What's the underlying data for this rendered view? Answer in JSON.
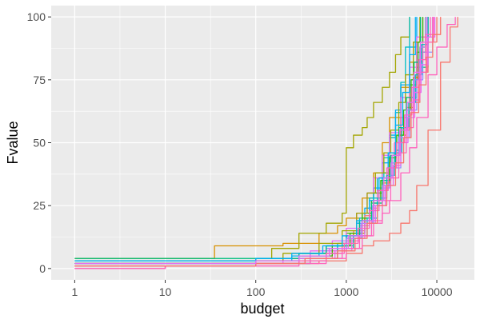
{
  "chart_data": {
    "type": "line",
    "title": "",
    "xlabel": "budget",
    "ylabel": "Fvalue",
    "x_scale": "log10",
    "xlim": [
      0.55,
      26000
    ],
    "ylim": [
      -4.5,
      104.5
    ],
    "x_ticks": [
      1,
      10,
      100,
      1000,
      10000
    ],
    "x_tick_labels": [
      "1",
      "10",
      "100",
      "1000",
      "10000"
    ],
    "y_ticks": [
      0,
      25,
      50,
      75,
      100
    ],
    "y_tick_labels": [
      "0",
      "25",
      "50",
      "75",
      "100"
    ],
    "grid": true,
    "legend": "none",
    "colors": {
      "panel": "#ebebeb",
      "grid_major": "#ffffff",
      "series_palette": [
        "#F8766D",
        "#D89000",
        "#A3A500",
        "#39B600",
        "#00BF7D",
        "#00BFC4",
        "#00B0F6",
        "#9590FF",
        "#E76BF3",
        "#FF62BC"
      ]
    },
    "series": [
      {
        "color": "#F8766D",
        "x": [
          1,
          10,
          100,
          250,
          500,
          1000,
          1500,
          2000,
          3000,
          4000,
          5000,
          6000,
          8000,
          11000,
          14000,
          17000
        ],
        "y": [
          1,
          1,
          2,
          2,
          3,
          6,
          9,
          11,
          14,
          18,
          23,
          33,
          55,
          82,
          96,
          100
        ]
      },
      {
        "color": "#FF62BC",
        "x": [
          1,
          10,
          100,
          300,
          600,
          1000,
          1500,
          2000,
          2500,
          3000,
          4000,
          5000,
          6000,
          8000,
          10000,
          13000,
          16000
        ],
        "y": [
          0,
          1,
          1,
          2,
          4,
          8,
          13,
          18,
          22,
          27,
          38,
          48,
          60,
          77,
          88,
          97,
          100
        ]
      },
      {
        "color": "#D89000",
        "x": [
          1,
          3,
          35,
          100,
          200,
          500,
          800,
          1000,
          1500,
          2000,
          2500,
          3000,
          4000,
          5000,
          6000,
          8000
        ],
        "y": [
          4,
          4,
          9,
          9,
          10,
          14,
          17,
          20,
          28,
          38,
          50,
          60,
          72,
          82,
          90,
          100
        ]
      },
      {
        "color": "#A3A500",
        "x": [
          1,
          10,
          100,
          150,
          300,
          600,
          900,
          1000,
          1200,
          1500,
          1700,
          2000,
          2500,
          3000,
          3500,
          4000,
          5000
        ],
        "y": [
          2,
          2,
          4,
          8,
          14,
          18,
          22,
          48,
          53,
          56,
          60,
          66,
          72,
          78,
          85,
          92,
          100
        ]
      },
      {
        "color": "#39B600",
        "x": [
          1,
          10,
          100,
          300,
          600,
          1000,
          1500,
          2000,
          2500,
          3000,
          4000,
          5000,
          6000,
          7500
        ],
        "y": [
          2,
          2,
          3,
          5,
          9,
          14,
          22,
          30,
          38,
          46,
          60,
          73,
          86,
          100
        ]
      },
      {
        "color": "#00BF7D",
        "x": [
          1,
          10,
          100,
          400,
          800,
          1200,
          1600,
          2000,
          2500,
          3000,
          3500,
          4000,
          5000,
          6000,
          8000
        ],
        "y": [
          4,
          4,
          4,
          6,
          9,
          14,
          20,
          26,
          33,
          40,
          47,
          55,
          68,
          80,
          100
        ]
      },
      {
        "color": "#00BFC4",
        "x": [
          1,
          10,
          100,
          300,
          600,
          1000,
          1400,
          1800,
          2200,
          2600,
          3000,
          3500,
          4000,
          4500,
          5000
        ],
        "y": [
          3,
          3,
          4,
          6,
          9,
          13,
          20,
          28,
          36,
          44,
          52,
          62,
          74,
          88,
          100
        ]
      },
      {
        "color": "#00B0F6",
        "x": [
          1,
          10,
          100,
          250,
          500,
          800,
          1000,
          1300,
          1600,
          2000,
          2500,
          3000,
          3500,
          4000,
          5000,
          6000
        ],
        "y": [
          2,
          2,
          3,
          5,
          7,
          10,
          13,
          18,
          24,
          32,
          42,
          53,
          63,
          73,
          88,
          100
        ]
      },
      {
        "color": "#9590FF",
        "x": [
          1,
          10,
          100,
          300,
          600,
          1000,
          1500,
          2000,
          2500,
          3000,
          4000,
          5000,
          6000,
          7000,
          9000
        ],
        "y": [
          1,
          1,
          3,
          5,
          8,
          12,
          18,
          25,
          32,
          40,
          52,
          63,
          75,
          86,
          100
        ]
      },
      {
        "color": "#E76BF3",
        "x": [
          1,
          10,
          100,
          200,
          400,
          700,
          1000,
          1300,
          1700,
          2000,
          2500,
          3000,
          4000,
          5000,
          6000,
          7000
        ],
        "y": [
          0,
          1,
          2,
          4,
          7,
          11,
          16,
          22,
          30,
          36,
          45,
          54,
          68,
          80,
          92,
          100
        ]
      },
      {
        "color": "#FF62BC",
        "x": [
          1,
          10,
          100,
          350,
          700,
          1000,
          1400,
          1800,
          2200,
          2800,
          3400,
          4000,
          5000,
          6000,
          7000,
          8500
        ],
        "y": [
          1,
          1,
          2,
          4,
          7,
          11,
          17,
          24,
          31,
          40,
          50,
          60,
          72,
          82,
          92,
          100
        ]
      },
      {
        "color": "#F8766D",
        "x": [
          1,
          10,
          100,
          300,
          600,
          900,
          1200,
          1600,
          2000,
          2600,
          3200,
          4000,
          5000,
          6500,
          8000,
          10000
        ],
        "y": [
          0,
          1,
          2,
          3,
          6,
          10,
          15,
          21,
          27,
          36,
          45,
          55,
          66,
          78,
          90,
          100
        ]
      },
      {
        "color": "#D89000",
        "x": [
          1,
          10,
          100,
          400,
          800,
          1200,
          1600,
          2000,
          2500,
          3000,
          3800,
          4600,
          5500,
          6500,
          7500
        ],
        "y": [
          1,
          1,
          2,
          4,
          8,
          14,
          20,
          27,
          34,
          42,
          53,
          64,
          76,
          88,
          100
        ]
      },
      {
        "color": "#A3A500",
        "x": [
          1,
          10,
          100,
          200,
          500,
          900,
          1300,
          1700,
          2100,
          2600,
          3100,
          3800,
          4500,
          5500,
          6500
        ],
        "y": [
          2,
          2,
          3,
          6,
          10,
          15,
          22,
          30,
          38,
          46,
          55,
          66,
          77,
          90,
          100
        ]
      },
      {
        "color": "#39B600",
        "x": [
          1,
          10,
          100,
          300,
          700,
          1100,
          1500,
          1900,
          2400,
          3000,
          3600,
          4300,
          5200,
          6200,
          7000
        ],
        "y": [
          2,
          2,
          3,
          5,
          9,
          14,
          20,
          27,
          35,
          44,
          53,
          63,
          75,
          90,
          100
        ]
      },
      {
        "color": "#00BF7D",
        "x": [
          1,
          10,
          100,
          300,
          600,
          1000,
          1400,
          1900,
          2500,
          3100,
          3800,
          4600,
          5600,
          6600
        ],
        "y": [
          3,
          3,
          4,
          6,
          9,
          13,
          19,
          26,
          35,
          45,
          56,
          68,
          82,
          100
        ]
      },
      {
        "color": "#00BFC4",
        "x": [
          1,
          10,
          100,
          400,
          800,
          1200,
          1700,
          2200,
          2800,
          3400,
          4100,
          4900,
          5800,
          6800,
          8000
        ],
        "y": [
          1,
          1,
          2,
          4,
          8,
          13,
          20,
          28,
          37,
          46,
          56,
          66,
          77,
          89,
          100
        ]
      },
      {
        "color": "#00B0F6",
        "x": [
          1,
          10,
          100,
          250,
          550,
          900,
          1300,
          1800,
          2300,
          2900,
          3500,
          4200,
          5000,
          5800
        ],
        "y": [
          3,
          3,
          4,
          6,
          9,
          13,
          19,
          27,
          36,
          46,
          57,
          70,
          85,
          100
        ]
      },
      {
        "color": "#9590FF",
        "x": [
          1,
          10,
          100,
          300,
          650,
          1000,
          1450,
          1950,
          2500,
          3100,
          3800,
          4600,
          5500,
          6500,
          7500
        ],
        "y": [
          2,
          2,
          3,
          5,
          8,
          12,
          18,
          25,
          33,
          42,
          52,
          63,
          75,
          88,
          100
        ]
      },
      {
        "color": "#E76BF3",
        "x": [
          1,
          10,
          100,
          350,
          750,
          1150,
          1600,
          2100,
          2700,
          3300,
          4000,
          4800,
          5700,
          6700,
          8000,
          9500
        ],
        "y": [
          1,
          1,
          2,
          4,
          7,
          12,
          18,
          25,
          33,
          41,
          50,
          60,
          70,
          81,
          92,
          100
        ]
      },
      {
        "color": "#FF62BC",
        "x": [
          1,
          10,
          100,
          300,
          600,
          950,
          1350,
          1800,
          2300,
          2900,
          3600,
          4400,
          5300,
          6300,
          7500,
          9000
        ],
        "y": [
          0,
          1,
          2,
          3,
          6,
          10,
          16,
          23,
          31,
          40,
          50,
          61,
          72,
          83,
          93,
          100
        ]
      },
      {
        "color": "#FF62BC",
        "x": [
          1,
          10,
          100,
          400,
          900,
          1400,
          1900,
          2500,
          3100,
          3800,
          4600,
          5500,
          6500,
          7800,
          9200
        ],
        "y": [
          1,
          1,
          2,
          4,
          8,
          13,
          19,
          27,
          36,
          46,
          56,
          67,
          78,
          90,
          100
        ]
      },
      {
        "color": "#F8766D",
        "x": [
          1,
          10,
          100,
          350,
          800,
          1250,
          1700,
          2200,
          2800,
          3500,
          4300,
          5200,
          6300,
          7600,
          9000,
          11000
        ],
        "y": [
          1,
          1,
          2,
          4,
          7,
          12,
          18,
          25,
          33,
          42,
          52,
          62,
          73,
          84,
          93,
          100
        ]
      },
      {
        "color": "#E76BF3",
        "x": [
          1,
          10,
          100,
          300,
          650,
          1050,
          1500,
          2000,
          2600,
          3200,
          3900,
          4700,
          5600,
          6600,
          7800
        ],
        "y": [
          2,
          2,
          3,
          5,
          8,
          13,
          19,
          27,
          36,
          45,
          55,
          66,
          78,
          90,
          100
        ]
      }
    ]
  }
}
